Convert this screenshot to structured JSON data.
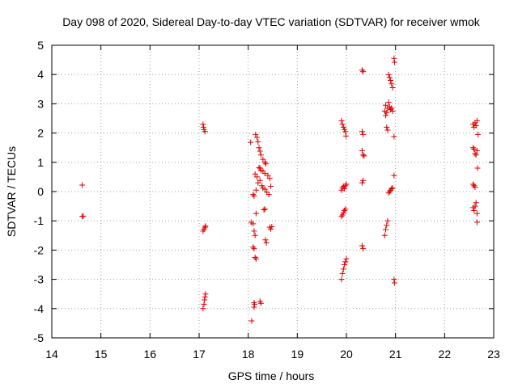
{
  "chart_data": {
    "type": "scatter",
    "title": "Day 098 of 2020, Sidereal Day-to-day VTEC variation (SDTVAR) for receiver wmok",
    "xlabel": "GPS time / hours",
    "ylabel": "SDTVAR / TECUs",
    "xlim": [
      14,
      23
    ],
    "ylim": [
      -5,
      5
    ],
    "xticks": [
      "14",
      "15",
      "16",
      "17",
      "18",
      "19",
      "20",
      "21",
      "22",
      "23"
    ],
    "yticks": [
      "-5",
      "-4",
      "-3",
      "-2",
      "-1",
      "0",
      "1",
      "2",
      "3",
      "4",
      "5"
    ],
    "grid": true,
    "marker": "+",
    "marker_color": "#dd0000",
    "series": [
      {
        "name": "SDTVAR",
        "points": [
          [
            14.62,
            0.22
          ],
          [
            14.62,
            -0.85
          ],
          [
            14.64,
            -0.84
          ],
          [
            17.08,
            2.3
          ],
          [
            17.09,
            2.2
          ],
          [
            17.1,
            2.12
          ],
          [
            17.12,
            2.05
          ],
          [
            17.08,
            -1.35
          ],
          [
            17.1,
            -1.28
          ],
          [
            17.12,
            -1.22
          ],
          [
            17.13,
            -1.18
          ],
          [
            17.08,
            -4.0
          ],
          [
            17.1,
            -3.85
          ],
          [
            17.11,
            -3.7
          ],
          [
            17.12,
            -3.6
          ],
          [
            17.13,
            -3.5
          ],
          [
            18.05,
            1.68
          ],
          [
            18.15,
            1.95
          ],
          [
            18.18,
            1.85
          ],
          [
            18.2,
            1.7
          ],
          [
            18.22,
            1.5
          ],
          [
            18.24,
            1.38
          ],
          [
            18.26,
            1.25
          ],
          [
            18.3,
            1.1
          ],
          [
            18.34,
            1.0
          ],
          [
            18.36,
            0.95
          ],
          [
            18.14,
            0.6
          ],
          [
            18.18,
            0.5
          ],
          [
            18.22,
            0.82
          ],
          [
            18.24,
            0.8
          ],
          [
            18.26,
            0.72
          ],
          [
            18.3,
            0.7
          ],
          [
            18.34,
            0.62
          ],
          [
            18.4,
            0.55
          ],
          [
            18.44,
            0.45
          ],
          [
            18.1,
            -0.1
          ],
          [
            18.12,
            -0.15
          ],
          [
            18.16,
            0.05
          ],
          [
            18.2,
            0.3
          ],
          [
            18.24,
            0.38
          ],
          [
            18.28,
            0.2
          ],
          [
            18.3,
            0.12
          ],
          [
            18.34,
            0.08
          ],
          [
            18.38,
            -0.02
          ],
          [
            18.42,
            -0.1
          ],
          [
            18.46,
            0.18
          ],
          [
            18.32,
            -0.62
          ],
          [
            18.34,
            -0.6
          ],
          [
            18.06,
            -1.05
          ],
          [
            18.1,
            -1.1
          ],
          [
            18.12,
            -1.35
          ],
          [
            18.14,
            -1.5
          ],
          [
            18.16,
            -0.75
          ],
          [
            18.35,
            -1.65
          ],
          [
            18.37,
            -1.75
          ],
          [
            18.44,
            -1.22
          ],
          [
            18.46,
            -1.28
          ],
          [
            18.48,
            -1.2
          ],
          [
            18.1,
            -1.9
          ],
          [
            18.12,
            -1.95
          ],
          [
            18.14,
            -2.25
          ],
          [
            18.16,
            -2.3
          ],
          [
            18.07,
            -4.42
          ],
          [
            18.12,
            -3.8
          ],
          [
            18.13,
            -3.85
          ],
          [
            18.12,
            -3.95
          ],
          [
            18.24,
            -3.75
          ],
          [
            18.26,
            -3.82
          ],
          [
            19.9,
            2.42
          ],
          [
            19.92,
            2.3
          ],
          [
            19.94,
            2.2
          ],
          [
            19.96,
            2.12
          ],
          [
            19.98,
            2.05
          ],
          [
            19.99,
            1.9
          ],
          [
            19.9,
            0.05
          ],
          [
            19.92,
            0.12
          ],
          [
            19.94,
            0.18
          ],
          [
            19.96,
            0.1
          ],
          [
            19.98,
            0.2
          ],
          [
            20.0,
            0.25
          ],
          [
            19.9,
            -0.85
          ],
          [
            19.92,
            -0.8
          ],
          [
            19.94,
            -0.72
          ],
          [
            19.96,
            -0.65
          ],
          [
            19.98,
            -0.6
          ],
          [
            19.9,
            -3.0
          ],
          [
            19.92,
            -2.8
          ],
          [
            19.94,
            -2.65
          ],
          [
            19.96,
            -2.5
          ],
          [
            19.98,
            -2.4
          ],
          [
            20.0,
            -2.3
          ],
          [
            20.32,
            4.15
          ],
          [
            20.34,
            4.1
          ],
          [
            20.32,
            2.05
          ],
          [
            20.34,
            1.95
          ],
          [
            20.32,
            1.4
          ],
          [
            20.34,
            1.25
          ],
          [
            20.36,
            1.22
          ],
          [
            20.32,
            0.3
          ],
          [
            20.34,
            0.38
          ],
          [
            20.32,
            -1.85
          ],
          [
            20.34,
            -1.95
          ],
          [
            20.78,
            2.75
          ],
          [
            20.8,
            2.95
          ],
          [
            20.82,
            2.7
          ],
          [
            20.84,
            2.85
          ],
          [
            20.86,
            3.05
          ],
          [
            20.88,
            2.9
          ],
          [
            20.9,
            2.8
          ],
          [
            20.92,
            2.85
          ],
          [
            20.94,
            2.75
          ],
          [
            20.8,
            2.6
          ],
          [
            20.82,
            2.2
          ],
          [
            20.84,
            2.1
          ],
          [
            20.86,
            4.0
          ],
          [
            20.88,
            3.9
          ],
          [
            20.9,
            3.8
          ],
          [
            20.92,
            3.68
          ],
          [
            20.94,
            3.55
          ],
          [
            20.97,
            4.55
          ],
          [
            20.98,
            4.42
          ],
          [
            20.97,
            1.88
          ],
          [
            20.86,
            -0.05
          ],
          [
            20.88,
            0.0
          ],
          [
            20.9,
            0.05
          ],
          [
            20.92,
            0.1
          ],
          [
            20.94,
            0.12
          ],
          [
            20.97,
            0.55
          ],
          [
            20.78,
            -1.5
          ],
          [
            20.8,
            -1.3
          ],
          [
            20.82,
            -1.15
          ],
          [
            20.84,
            -1.0
          ],
          [
            20.97,
            -3.0
          ],
          [
            20.98,
            -3.12
          ],
          [
            22.58,
            2.3
          ],
          [
            22.6,
            2.2
          ],
          [
            22.62,
            2.35
          ],
          [
            22.64,
            2.25
          ],
          [
            22.66,
            2.42
          ],
          [
            22.68,
            1.95
          ],
          [
            22.58,
            1.5
          ],
          [
            22.6,
            1.45
          ],
          [
            22.62,
            1.3
          ],
          [
            22.64,
            1.25
          ],
          [
            22.66,
            1.4
          ],
          [
            22.58,
            0.25
          ],
          [
            22.6,
            0.2
          ],
          [
            22.62,
            0.15
          ],
          [
            22.58,
            -0.55
          ],
          [
            22.6,
            -0.65
          ],
          [
            22.62,
            -0.5
          ],
          [
            22.64,
            -0.38
          ],
          [
            22.66,
            -0.75
          ],
          [
            22.66,
            -1.05
          ],
          [
            22.67,
            0.8
          ]
        ]
      }
    ]
  }
}
